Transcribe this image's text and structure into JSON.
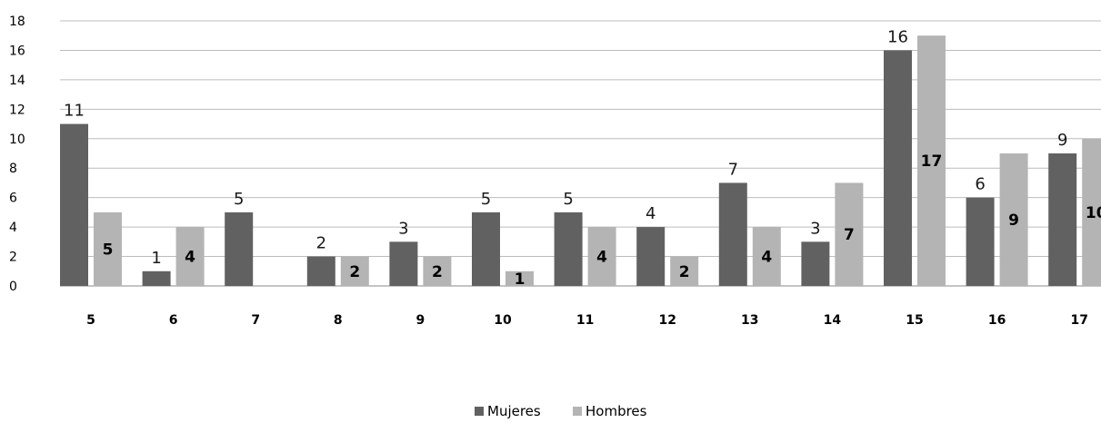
{
  "chart_data": {
    "type": "bar",
    "title": "",
    "xlabel": "",
    "ylabel": "",
    "ylim": [
      0,
      18
    ],
    "yticks": [
      "0",
      "2",
      "4",
      "6",
      "8",
      "10",
      "12",
      "14",
      "16",
      "18"
    ],
    "grid": true,
    "legend_position": "bottom",
    "categories": [
      "5",
      "6",
      "7",
      "8",
      "9",
      "10",
      "11",
      "12",
      "13",
      "14",
      "15",
      "16",
      "17"
    ],
    "series": [
      {
        "name": "Mujeres",
        "color": "#616161",
        "values": [
          11,
          1,
          5,
          2,
          3,
          5,
          5,
          4,
          7,
          3,
          16,
          6,
          9
        ],
        "labels": [
          "11",
          "1",
          "5",
          "2",
          "3",
          "5",
          "5",
          "4",
          "7",
          "3",
          "16",
          "6",
          "9"
        ]
      },
      {
        "name": "Hombres",
        "color": "#b4b4b4",
        "values": [
          5,
          4,
          0,
          2,
          2,
          1,
          4,
          2,
          4,
          7,
          17,
          9,
          10
        ],
        "labels": [
          "5",
          "4",
          "",
          "2",
          "2",
          "1",
          "4",
          "2",
          "4",
          "7",
          "17",
          "9",
          "10"
        ]
      }
    ]
  }
}
